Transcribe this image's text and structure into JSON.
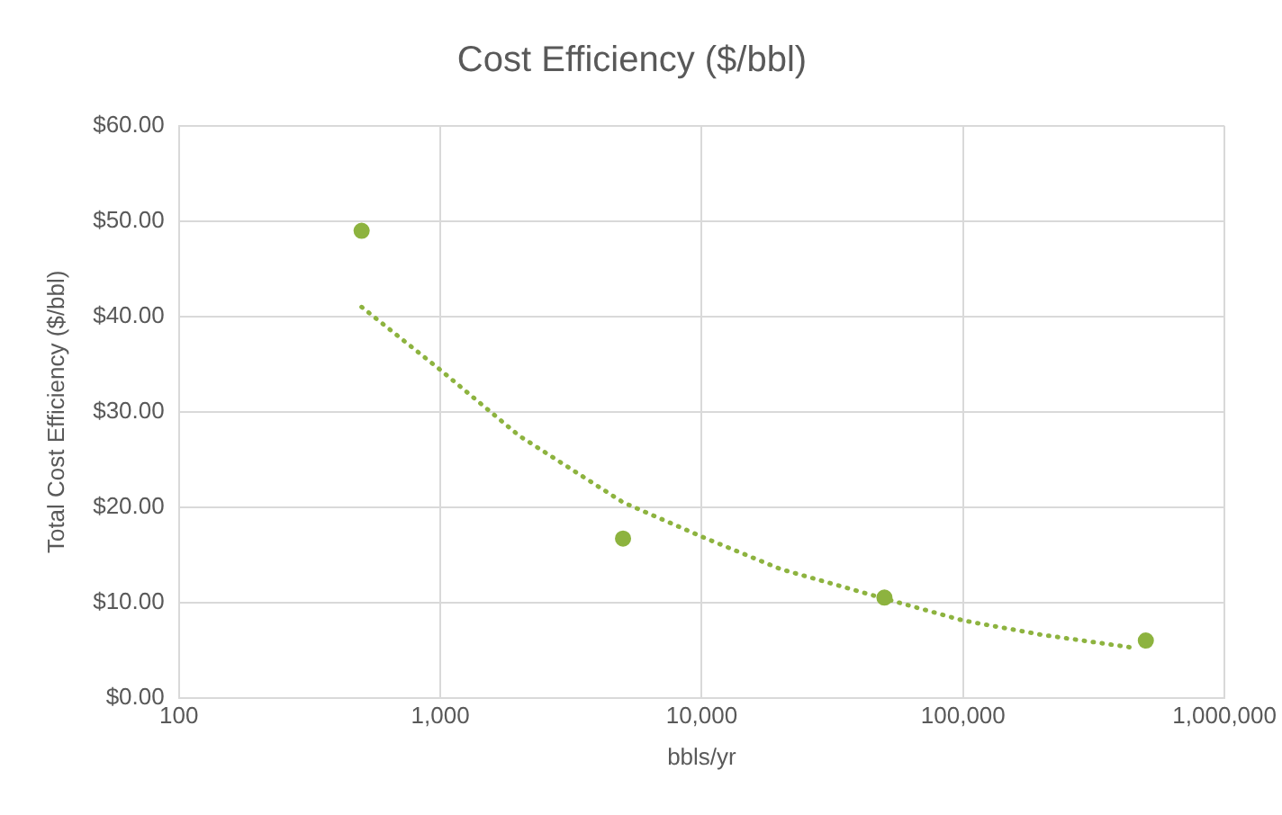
{
  "chart_data": {
    "type": "scatter",
    "title": "Cost Efficiency ($/bbl)",
    "xlabel": "bbls/yr",
    "ylabel": "Total Cost Efficiency ($/bbl)",
    "log": "x",
    "grid": true,
    "legend": false,
    "marker": "circle",
    "xlim": [
      100,
      1000000
    ],
    "xticks": [
      100,
      {
        "value": 1000,
        "label": "1,000"
      },
      {
        "value": 10000,
        "label": "10,000"
      },
      {
        "value": 100000,
        "label": "100,000"
      },
      {
        "value": 1000000,
        "label": "1,000,000"
      }
    ],
    "ylim": [
      0,
      60
    ],
    "yticks": [
      {
        "value": 0,
        "label": "$0.00"
      },
      {
        "value": 10,
        "label": "$10.00"
      },
      {
        "value": 20,
        "label": "$20.00"
      },
      {
        "value": 30,
        "label": "$30.00"
      },
      {
        "value": 40,
        "label": "$40.00"
      },
      {
        "value": 50,
        "label": "$50.00"
      },
      {
        "value": 60,
        "label": "$60.00"
      }
    ],
    "series": [
      {
        "color": "#8db33f",
        "x": [
          500,
          5000,
          50000,
          500000
        ],
        "values": [
          49,
          16.7,
          10.5,
          6
        ]
      },
      {
        "type": "line",
        "color": "#8db33f",
        "marker": "none",
        "line_style": "dotted",
        "x": [
          500,
          1000,
          2000,
          5000,
          10000,
          20000,
          50000,
          100000,
          200000,
          460000
        ],
        "values": [
          41,
          34.4,
          27.5,
          20.5,
          16.9,
          13.5,
          10.4,
          8.1,
          6.6,
          5.2
        ]
      }
    ]
  }
}
